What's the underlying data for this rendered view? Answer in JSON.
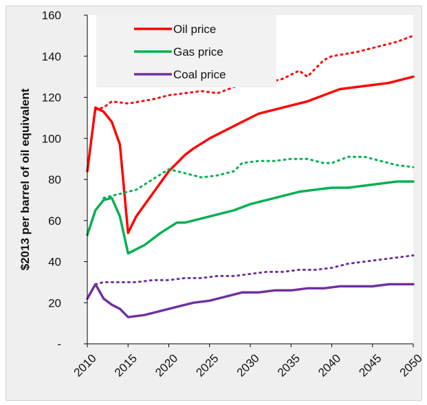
{
  "chart_data": {
    "type": "line",
    "title": "",
    "xlabel": "",
    "ylabel": "$2013 per barrel of oil equivalent",
    "ylim": [
      0,
      160
    ],
    "xlim": [
      2010,
      2050
    ],
    "yticks": [
      {
        "value": 0,
        "label": "-"
      },
      {
        "value": 20,
        "label": "20"
      },
      {
        "value": 40,
        "label": "40"
      },
      {
        "value": 60,
        "label": "60"
      },
      {
        "value": 80,
        "label": "80"
      },
      {
        "value": 100,
        "label": "100"
      },
      {
        "value": 120,
        "label": "120"
      },
      {
        "value": 140,
        "label": "140"
      },
      {
        "value": 160,
        "label": "160"
      }
    ],
    "xticks": [
      "2010",
      "2015",
      "2020",
      "2025",
      "2030",
      "2035",
      "2040",
      "2045",
      "2050"
    ],
    "legend_position": "top-left",
    "grid": false,
    "series": [
      {
        "name": "Oil price",
        "color": "#ff0000",
        "style": "solid",
        "points": [
          [
            2010,
            84
          ],
          [
            2011,
            115
          ],
          [
            2012,
            113
          ],
          [
            2013,
            108
          ],
          [
            2014,
            97
          ],
          [
            2015,
            54
          ],
          [
            2016,
            62
          ],
          [
            2018,
            73
          ],
          [
            2020,
            84
          ],
          [
            2022,
            92
          ],
          [
            2023,
            95
          ],
          [
            2025,
            100
          ],
          [
            2027,
            104
          ],
          [
            2029,
            108
          ],
          [
            2031,
            112
          ],
          [
            2033,
            114
          ],
          [
            2035,
            116
          ],
          [
            2037,
            118
          ],
          [
            2039,
            121
          ],
          [
            2041,
            124
          ],
          [
            2043,
            125
          ],
          [
            2045,
            126
          ],
          [
            2047,
            127
          ],
          [
            2049,
            129
          ],
          [
            2050,
            130
          ]
        ]
      },
      {
        "name": "",
        "color": "#ff0000",
        "style": "dotted",
        "points": [
          [
            2011,
            114
          ],
          [
            2012,
            115
          ],
          [
            2013,
            118
          ],
          [
            2015,
            117
          ],
          [
            2018,
            119
          ],
          [
            2020,
            121
          ],
          [
            2022,
            122
          ],
          [
            2024,
            123
          ],
          [
            2026,
            122
          ],
          [
            2028,
            125
          ],
          [
            2030,
            128
          ],
          [
            2032,
            127
          ],
          [
            2034,
            129
          ],
          [
            2036,
            133
          ],
          [
            2037,
            130
          ],
          [
            2039,
            138
          ],
          [
            2040,
            140
          ],
          [
            2043,
            142
          ],
          [
            2045,
            144
          ],
          [
            2048,
            147
          ],
          [
            2050,
            150
          ]
        ]
      },
      {
        "name": "Gas price",
        "color": "#00b050",
        "style": "solid",
        "points": [
          [
            2010,
            53
          ],
          [
            2011,
            65
          ],
          [
            2012,
            70
          ],
          [
            2013,
            71
          ],
          [
            2014,
            62
          ],
          [
            2015,
            44
          ],
          [
            2017,
            48
          ],
          [
            2019,
            54
          ],
          [
            2021,
            59
          ],
          [
            2022,
            59
          ],
          [
            2024,
            61
          ],
          [
            2026,
            63
          ],
          [
            2028,
            65
          ],
          [
            2030,
            68
          ],
          [
            2032,
            70
          ],
          [
            2034,
            72
          ],
          [
            2036,
            74
          ],
          [
            2038,
            75
          ],
          [
            2040,
            76
          ],
          [
            2042,
            76
          ],
          [
            2044,
            77
          ],
          [
            2046,
            78
          ],
          [
            2048,
            79
          ],
          [
            2050,
            79
          ]
        ]
      },
      {
        "name": "",
        "color": "#00b050",
        "style": "dotted",
        "points": [
          [
            2012,
            71
          ],
          [
            2014,
            73
          ],
          [
            2016,
            75
          ],
          [
            2018,
            80
          ],
          [
            2020,
            85
          ],
          [
            2022,
            83
          ],
          [
            2024,
            81
          ],
          [
            2026,
            82
          ],
          [
            2028,
            84
          ],
          [
            2029,
            88
          ],
          [
            2031,
            89
          ],
          [
            2033,
            89
          ],
          [
            2035,
            90
          ],
          [
            2037,
            90
          ],
          [
            2039,
            88
          ],
          [
            2040,
            88
          ],
          [
            2042,
            91
          ],
          [
            2044,
            91
          ],
          [
            2046,
            89
          ],
          [
            2048,
            87
          ],
          [
            2050,
            86
          ]
        ]
      },
      {
        "name": "Coal price",
        "color": "#7030a0",
        "style": "solid",
        "points": [
          [
            2010,
            22
          ],
          [
            2011,
            29
          ],
          [
            2012,
            22
          ],
          [
            2013,
            19
          ],
          [
            2014,
            17
          ],
          [
            2015,
            13
          ],
          [
            2017,
            14
          ],
          [
            2019,
            16
          ],
          [
            2021,
            18
          ],
          [
            2023,
            20
          ],
          [
            2025,
            21
          ],
          [
            2027,
            23
          ],
          [
            2029,
            25
          ],
          [
            2031,
            25
          ],
          [
            2033,
            26
          ],
          [
            2035,
            26
          ],
          [
            2037,
            27
          ],
          [
            2039,
            27
          ],
          [
            2041,
            28
          ],
          [
            2043,
            28
          ],
          [
            2045,
            28
          ],
          [
            2047,
            29
          ],
          [
            2050,
            29
          ]
        ]
      },
      {
        "name": "",
        "color": "#7030a0",
        "style": "dotted",
        "points": [
          [
            2011,
            29
          ],
          [
            2012,
            30
          ],
          [
            2014,
            30
          ],
          [
            2016,
            30
          ],
          [
            2018,
            31
          ],
          [
            2020,
            31
          ],
          [
            2022,
            32
          ],
          [
            2024,
            32
          ],
          [
            2026,
            33
          ],
          [
            2028,
            33
          ],
          [
            2030,
            34
          ],
          [
            2032,
            35
          ],
          [
            2034,
            35
          ],
          [
            2036,
            36
          ],
          [
            2038,
            36
          ],
          [
            2040,
            37
          ],
          [
            2042,
            39
          ],
          [
            2044,
            40
          ],
          [
            2046,
            41
          ],
          [
            2048,
            42
          ],
          [
            2050,
            43
          ]
        ]
      }
    ]
  }
}
